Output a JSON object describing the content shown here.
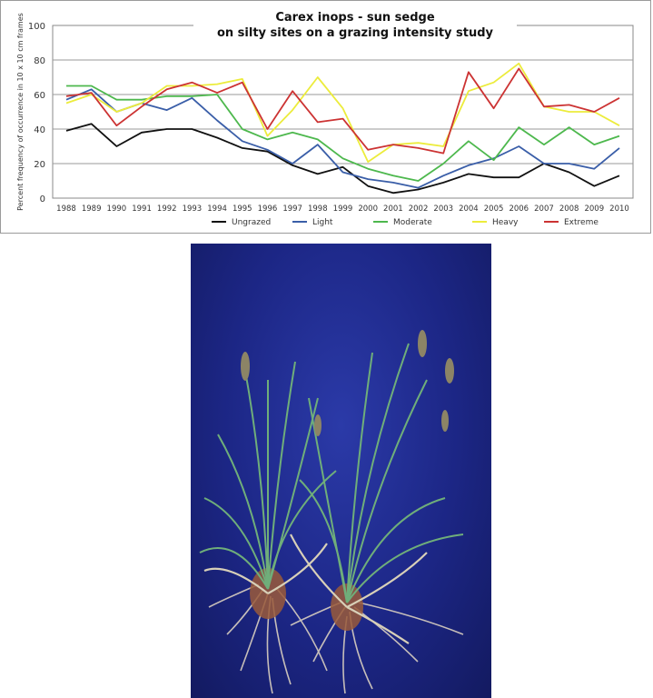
{
  "chart_data": {
    "type": "line",
    "title": "Carex inops  -  sun sedge",
    "subtitle": "on silty sites on a grazing intensity study",
    "xlabel": "",
    "ylabel": "Percent frequency of occurrence in 10 x 10 cm frames",
    "ylim": [
      0,
      100
    ],
    "yticks": [
      "0",
      "20",
      "40",
      "60",
      "80",
      "100"
    ],
    "grid": true,
    "legend": "bottom",
    "x": [
      "1988",
      "1989",
      "1990",
      "1991",
      "1992",
      "1993",
      "1994",
      "1995",
      "1996",
      "1997",
      "1998",
      "1999",
      "2000",
      "2001",
      "2002",
      "2003",
      "2004",
      "2005",
      "2006",
      "2007",
      "2008",
      "2009",
      "2010"
    ],
    "series": [
      {
        "name": "Ungrazed",
        "color": "#111111",
        "values": [
          39,
          43,
          30,
          38,
          40,
          40,
          35,
          29,
          27,
          19,
          14,
          18,
          7,
          3,
          5,
          9,
          14,
          12,
          12,
          20,
          15,
          7,
          13
        ]
      },
      {
        "name": "Light",
        "color": "#3a5ea8",
        "values": [
          57,
          63,
          50,
          55,
          51,
          58,
          45,
          33,
          28,
          20,
          31,
          15,
          11,
          9,
          6,
          13,
          19,
          23,
          30,
          20,
          20,
          17,
          29
        ]
      },
      {
        "name": "Moderate",
        "color": "#4db84d",
        "values": [
          65,
          65,
          57,
          57,
          59,
          59,
          60,
          40,
          34,
          38,
          34,
          23,
          17,
          13,
          10,
          20,
          33,
          22,
          41,
          31,
          41,
          31,
          36
        ]
      },
      {
        "name": "Heavy",
        "color": "#ecec3c",
        "values": [
          55,
          60,
          50,
          55,
          65,
          65,
          66,
          69,
          36,
          51,
          70,
          52,
          21,
          31,
          32,
          30,
          62,
          67,
          78,
          53,
          50,
          50,
          42
        ]
      },
      {
        "name": "Extreme",
        "color": "#cc3333",
        "values": [
          59,
          61,
          42,
          53,
          63,
          67,
          61,
          67,
          40,
          62,
          44,
          46,
          28,
          31,
          29,
          26,
          73,
          52,
          75,
          53,
          54,
          50,
          58
        ]
      }
    ]
  },
  "photo": {
    "icon": "sun-sedge-plants-photo",
    "background": "#1c2685"
  }
}
